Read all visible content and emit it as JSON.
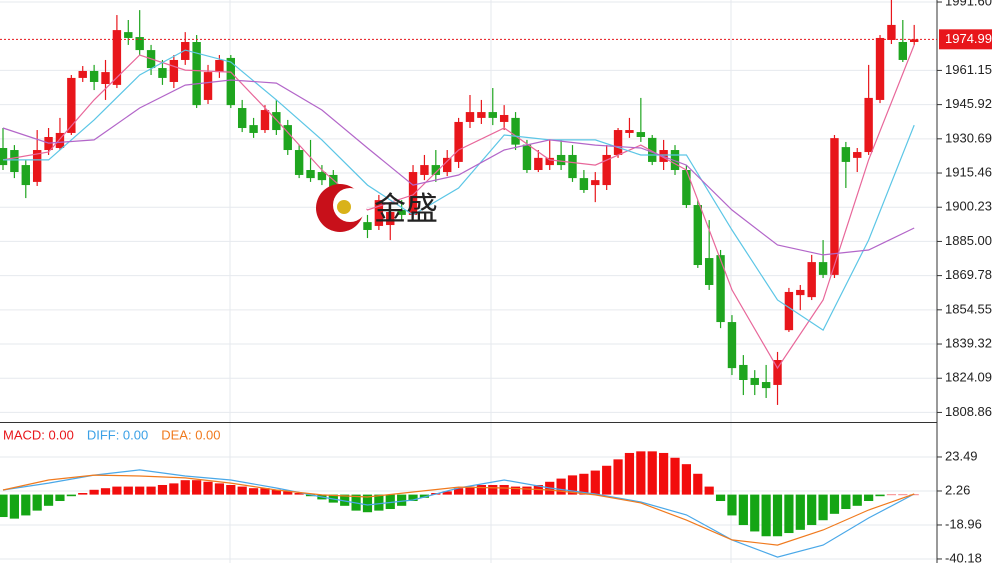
{
  "chart_data": [
    {
      "type": "candlestick",
      "up_color": "#e8161b",
      "down_color": "#1fa51f",
      "open": [
        1926.6,
        1925.7,
        1919.0,
        1911.5,
        1925.7,
        1926.6,
        1933.3,
        1957.8,
        1960.9,
        1955.1,
        1954.7,
        1978.2,
        1976.0,
        1970.2,
        1962.2,
        1956.0,
        1965.8,
        1973.8,
        1948.0,
        1960.4,
        1966.7,
        1944.4,
        1936.8,
        1934.6,
        1942.6,
        1936.8,
        1925.7,
        1916.8,
        1915.9,
        1914.6,
        1907.9,
        1904.3,
        1893.6,
        1891.9,
        1892.3,
        1899.0,
        1896.8,
        1914.6,
        1919.0,
        1915.9,
        1920.4,
        1938.2,
        1940.0,
        1942.6,
        1938.2,
        1940.0,
        1928.1,
        1916.8,
        1919.0,
        1923.5,
        1923.5,
        1913.2,
        1910.1,
        1910.1,
        1923.5,
        1933.3,
        1933.7,
        1931.1,
        1920.4,
        1925.7,
        1916.8,
        1901.2,
        1877.6,
        1878.9,
        1849.1,
        1830.0,
        1824.2,
        1822.4,
        1821.1,
        1845.5,
        1861.1,
        1860.2,
        1875.8,
        1870.1,
        1927.0,
        1922.2,
        1924.8,
        1948.0,
        1974.7,
        1973.8,
        1973.8
      ],
      "high": [
        1935.5,
        1927.9,
        1921.3,
        1934.6,
        1935.5,
        1940.0,
        1959.1,
        1963.1,
        1963.6,
        1965.8,
        1985.8,
        1983.6,
        1988.0,
        1972.5,
        1965.8,
        1968.0,
        1978.2,
        1976.9,
        1963.6,
        1968.0,
        1968.0,
        1948.0,
        1940.0,
        1945.7,
        1948.0,
        1939.1,
        1927.9,
        1930.2,
        1919.0,
        1916.8,
        1910.1,
        1907.0,
        1896.8,
        1905.7,
        1901.2,
        1903.4,
        1919.0,
        1923.5,
        1925.7,
        1925.7,
        1940.0,
        1950.2,
        1948.0,
        1953.3,
        1945.7,
        1942.6,
        1930.2,
        1925.7,
        1930.2,
        1930.2,
        1927.9,
        1916.8,
        1915.9,
        1927.9,
        1935.5,
        1940.0,
        1948.9,
        1932.4,
        1930.2,
        1927.9,
        1919.0,
        1903.4,
        1894.5,
        1881.2,
        1852.2,
        1834.4,
        1827.7,
        1830.0,
        1835.8,
        1864.3,
        1865.6,
        1879.0,
        1885.6,
        1932.4,
        1929.3,
        1926.6,
        1963.6,
        1976.9,
        1992.5,
        1983.6,
        1981.4
      ],
      "low": [
        1916.8,
        1913.2,
        1904.3,
        1909.7,
        1923.5,
        1925.7,
        1932.4,
        1956.0,
        1952.4,
        1948.0,
        1953.3,
        1972.5,
        1968.0,
        1959.1,
        1954.7,
        1953.3,
        1963.6,
        1944.4,
        1946.2,
        1957.8,
        1944.4,
        1933.7,
        1931.1,
        1933.3,
        1932.4,
        1923.5,
        1913.2,
        1911.5,
        1910.1,
        1905.7,
        1901.2,
        1893.6,
        1886.5,
        1890.1,
        1885.6,
        1894.5,
        1895.4,
        1912.3,
        1911.5,
        1914.1,
        1917.7,
        1935.5,
        1937.3,
        1936.8,
        1934.6,
        1925.7,
        1915.5,
        1915.9,
        1916.8,
        1916.8,
        1911.5,
        1906.6,
        1902.5,
        1907.9,
        1922.2,
        1931.1,
        1929.3,
        1919.0,
        1916.8,
        1914.6,
        1899.9,
        1873.2,
        1863.4,
        1846.4,
        1825.5,
        1816.6,
        1816.6,
        1815.3,
        1812.2,
        1844.7,
        1854.4,
        1858.9,
        1868.7,
        1868.7,
        1908.8,
        1915.9,
        1923.5,
        1946.6,
        1972.9,
        1964.9,
        1972.5
      ],
      "close": [
        1919.0,
        1915.9,
        1910.1,
        1925.7,
        1931.5,
        1933.3,
        1957.8,
        1960.9,
        1956.0,
        1960.4,
        1979.1,
        1975.6,
        1970.2,
        1962.2,
        1957.8,
        1965.8,
        1973.8,
        1945.7,
        1960.4,
        1965.8,
        1945.7,
        1935.5,
        1933.3,
        1943.5,
        1934.6,
        1925.7,
        1914.6,
        1913.2,
        1912.3,
        1907.9,
        1904.3,
        1895.4,
        1890.1,
        1903.4,
        1898.1,
        1896.8,
        1915.9,
        1919.0,
        1914.6,
        1922.2,
        1938.2,
        1942.6,
        1942.6,
        1940.0,
        1941.3,
        1928.1,
        1916.8,
        1922.2,
        1922.2,
        1919.0,
        1913.2,
        1907.9,
        1912.3,
        1923.5,
        1934.6,
        1934.6,
        1931.5,
        1920.4,
        1925.7,
        1916.8,
        1901.2,
        1874.5,
        1865.6,
        1849.1,
        1828.6,
        1823.3,
        1821.1,
        1819.7,
        1832.2,
        1862.5,
        1863.4,
        1875.8,
        1870.1,
        1931.0,
        1920.4,
        1924.8,
        1948.9,
        1975.6,
        1981.4,
        1965.8,
        1974.99
      ],
      "series": [
        {
          "color": "#e8679a",
          "x": [
            0,
            4,
            8,
            12,
            16,
            20,
            24,
            28,
            32,
            36,
            40,
            44,
            48,
            52,
            56,
            60,
            64,
            68,
            72,
            76,
            80
          ],
          "values": [
            1921.3,
            1924.8,
            1948.0,
            1968.0,
            1961.3,
            1960.4,
            1939.1,
            1916.8,
            1899.0,
            1905.7,
            1925.7,
            1935.5,
            1921.3,
            1919.0,
            1927.9,
            1916.8,
            1863.4,
            1828.6,
            1858.9,
            1921.3,
            1972.5
          ]
        },
        {
          "color": "#5cc6e6",
          "x": [
            0,
            4,
            8,
            12,
            16,
            20,
            24,
            28,
            32,
            36,
            40,
            44,
            48,
            52,
            56,
            60,
            64,
            68,
            72,
            76,
            80
          ],
          "values": [
            1921.3,
            1921.3,
            1939.1,
            1959.1,
            1970.2,
            1964.9,
            1948.0,
            1930.2,
            1910.1,
            1896.8,
            1908.8,
            1932.4,
            1930.2,
            1930.2,
            1923.5,
            1923.5,
            1890.1,
            1858.9,
            1845.5,
            1885.6,
            1936.8
          ]
        },
        {
          "color": "#b366c9",
          "x": [
            0,
            4,
            8,
            12,
            16,
            20,
            24,
            28,
            32,
            36,
            40,
            44,
            48,
            52,
            56,
            60,
            64,
            68,
            72,
            76,
            80
          ],
          "values": [
            1935.5,
            1928.8,
            1930.2,
            1944.4,
            1954.6,
            1956.9,
            1955.5,
            1943.5,
            1926.6,
            1910.1,
            1914.6,
            1925.7,
            1930.2,
            1927.9,
            1926.6,
            1919.0,
            1899.0,
            1883.4,
            1879.0,
            1881.2,
            1891.0
          ]
        }
      ],
      "ylim": [
        1804.6,
        1992.5
      ],
      "yticks": [
        {
          "value": 1991.6,
          "label": "1991.60"
        },
        {
          "value": 1961.15,
          "label": "1961.15"
        },
        {
          "value": 1945.92,
          "label": "1945.92"
        },
        {
          "value": 1930.69,
          "label": "1930.69"
        },
        {
          "value": 1915.46,
          "label": "1915.46"
        },
        {
          "value": 1900.23,
          "label": "1900.23"
        },
        {
          "value": 1885,
          "label": "1885.00"
        },
        {
          "value": 1869.78,
          "label": "1869.78"
        },
        {
          "value": 1854.55,
          "label": "1854.55"
        },
        {
          "value": 1839.32,
          "label": "1839.32"
        },
        {
          "value": 1824.09,
          "label": "1824.09"
        },
        {
          "value": 1808.86,
          "label": "1808.86"
        }
      ],
      "current_price": 1974.99,
      "current_color": "#e8161b",
      "watermark": "金盛",
      "grid": true
    },
    {
      "type": "macd",
      "legend": [
        {
          "text": "MACD: 0.00",
          "color": "#e8161b"
        },
        {
          "text": "DIFF: 0.00",
          "color": "#3aa0e6"
        },
        {
          "text": "DEA: 0.00",
          "color": "#f07a1e"
        }
      ],
      "up_color": "#f20d0d",
      "down_color": "#14a514",
      "values": [
        -14,
        -15,
        -13,
        -10,
        -7,
        -4,
        -1,
        1,
        3,
        4,
        5,
        5,
        5,
        5,
        6,
        7,
        9,
        9,
        8,
        7,
        6,
        5,
        4,
        4,
        3,
        2,
        1,
        -1,
        -3,
        -5,
        -7,
        -10,
        -11,
        -10,
        -9,
        -7,
        -4,
        -2,
        1,
        2,
        4,
        5,
        6,
        6,
        6,
        5,
        5,
        6,
        8,
        10,
        12,
        13,
        15,
        18,
        22,
        26,
        27,
        27,
        26,
        23,
        19,
        13,
        5,
        -4,
        -13,
        -19,
        -23,
        -26,
        -26,
        -24,
        -22,
        -19,
        -16,
        -12,
        -9,
        -7,
        -4,
        -1,
        0,
        0,
        0
      ],
      "series": [
        {
          "color": "#4aa8e8",
          "x": [
            0,
            4,
            8,
            12,
            16,
            20,
            24,
            28,
            32,
            36,
            40,
            44,
            48,
            52,
            56,
            60,
            64,
            68,
            72,
            76,
            80
          ],
          "values": [
            2.9,
            7.2,
            12.2,
            15.4,
            11.6,
            9.1,
            4.1,
            -1.5,
            -6.5,
            -3.4,
            4.1,
            9.1,
            4.1,
            0.4,
            -4.6,
            -12.7,
            -28.3,
            -39,
            -31.5,
            -14.6,
            0.4
          ]
        },
        {
          "color": "#f07a1e",
          "x": [
            0,
            4,
            8,
            12,
            16,
            20,
            24,
            28,
            32,
            36,
            40,
            44,
            48,
            52,
            56,
            60,
            64,
            68,
            72,
            76,
            80
          ],
          "values": [
            2.9,
            9.1,
            12.2,
            11.6,
            10.4,
            7.2,
            2.9,
            -0.2,
            -1.5,
            1.6,
            4.7,
            4.1,
            2.9,
            -0.2,
            -5.2,
            -15.9,
            -28.3,
            -31.5,
            -22.1,
            -9.6,
            0.4
          ]
        }
      ],
      "ylim": [
        -42.7,
        44.7
      ],
      "yticks": [
        23.49,
        2.26,
        -18.96,
        -40.18
      ],
      "grid": true
    }
  ]
}
